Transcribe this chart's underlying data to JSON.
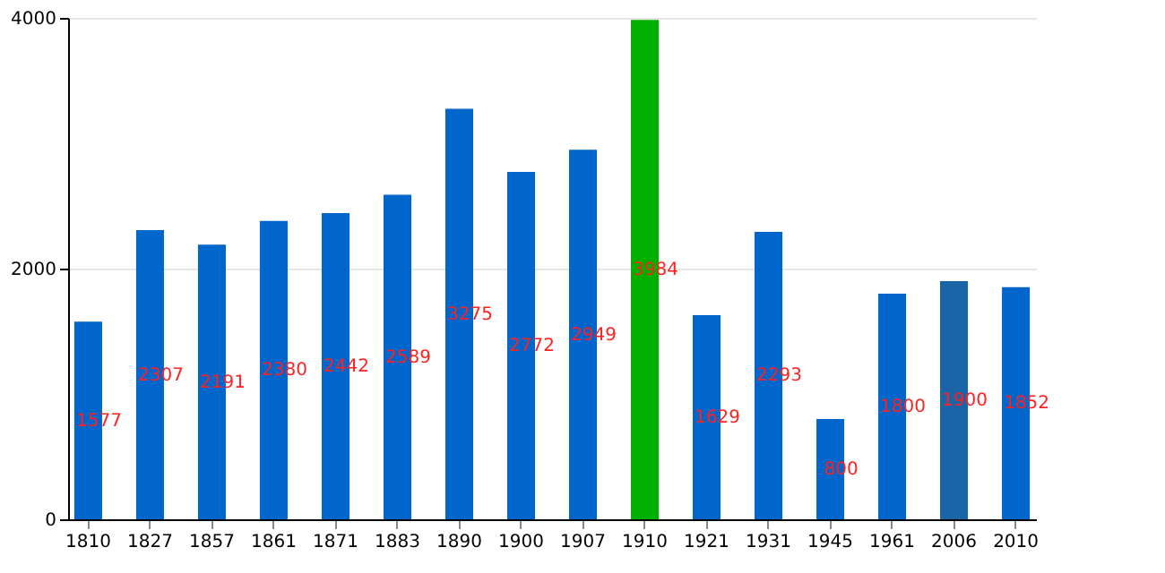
{
  "chart_data": {
    "type": "bar",
    "categories": [
      "1810",
      "1827",
      "1857",
      "1861",
      "1871",
      "1883",
      "1890",
      "1900",
      "1907",
      "1910",
      "1921",
      "1931",
      "1945",
      "1961",
      "2006",
      "2010"
    ],
    "values": [
      1577,
      2307,
      2191,
      2380,
      2442,
      2589,
      3275,
      2772,
      2949,
      3984,
      1629,
      2293,
      800,
      1800,
      1900,
      1852
    ],
    "colors": [
      "#0066cc",
      "#0066cc",
      "#0066cc",
      "#0066cc",
      "#0066cc",
      "#0066cc",
      "#0066cc",
      "#0066cc",
      "#0066cc",
      "#00b000",
      "#0066cc",
      "#0066cc",
      "#0066cc",
      "#0066cc",
      "#1a64a8",
      "#0066cc"
    ],
    "ylim": [
      0,
      4000
    ],
    "yticks": [
      0,
      2000,
      4000
    ],
    "grid": "y",
    "data_labels": true
  }
}
